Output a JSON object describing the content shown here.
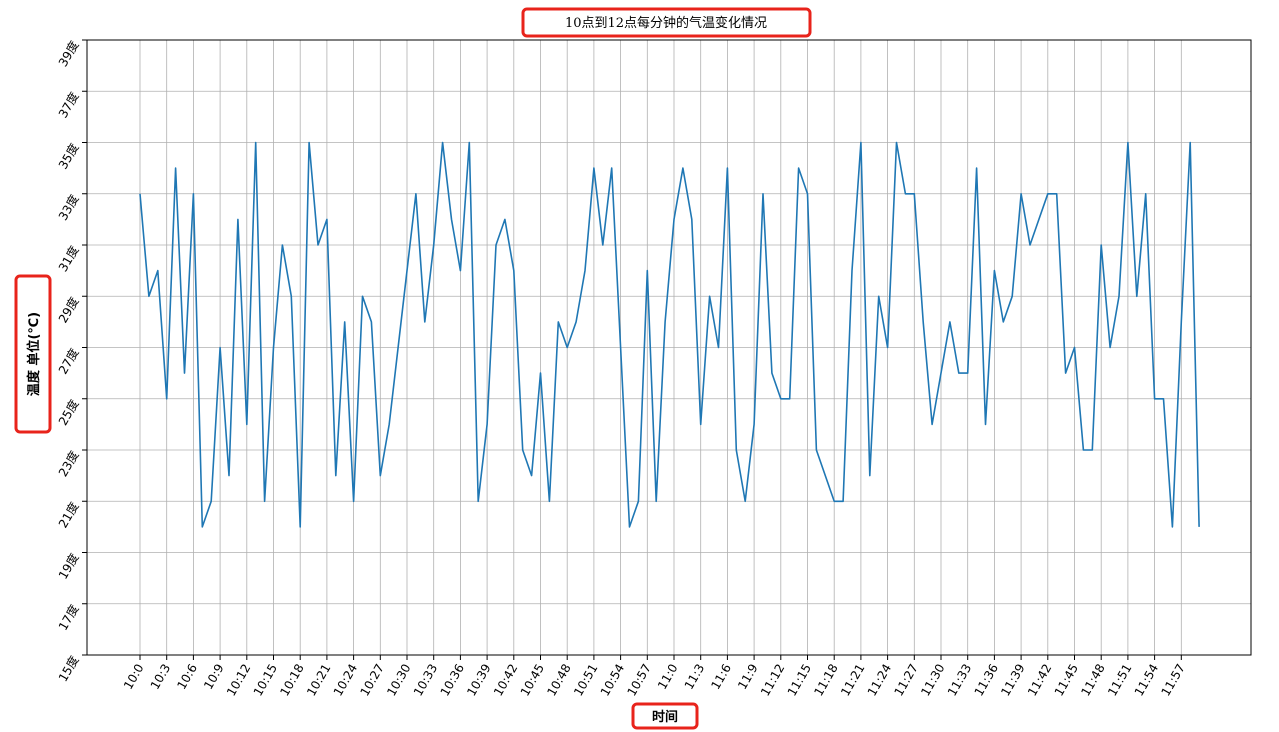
{
  "chart_data": {
    "type": "line",
    "title": "10点到12点每分钟的气温变化情况",
    "xlabel": "时间",
    "ylabel": "温度 单位(℃)",
    "x": [
      "10:0",
      "10:1",
      "10:2",
      "10:3",
      "10:4",
      "10:5",
      "10:6",
      "10:7",
      "10:8",
      "10:9",
      "10:10",
      "10:11",
      "10:12",
      "10:13",
      "10:14",
      "10:15",
      "10:16",
      "10:17",
      "10:18",
      "10:19",
      "10:20",
      "10:21",
      "10:22",
      "10:23",
      "10:24",
      "10:25",
      "10:26",
      "10:27",
      "10:28",
      "10:29",
      "10:30",
      "10:31",
      "10:32",
      "10:33",
      "10:34",
      "10:35",
      "10:36",
      "10:37",
      "10:38",
      "10:39",
      "10:40",
      "10:41",
      "10:42",
      "10:43",
      "10:44",
      "10:45",
      "10:46",
      "10:47",
      "10:48",
      "10:49",
      "10:50",
      "10:51",
      "10:52",
      "10:53",
      "10:54",
      "10:55",
      "10:56",
      "10:57",
      "10:58",
      "10:59",
      "11:0",
      "11:1",
      "11:2",
      "11:3",
      "11:4",
      "11:5",
      "11:6",
      "11:7",
      "11:8",
      "11:9",
      "11:10",
      "11:11",
      "11:12",
      "11:13",
      "11:14",
      "11:15",
      "11:16",
      "11:17",
      "11:18",
      "11:19",
      "11:20",
      "11:21",
      "11:22",
      "11:23",
      "11:24",
      "11:25",
      "11:26",
      "11:27",
      "11:28",
      "11:29",
      "11:30",
      "11:31",
      "11:32",
      "11:33",
      "11:34",
      "11:35",
      "11:36",
      "11:37",
      "11:38",
      "11:39",
      "11:40",
      "11:41",
      "11:42",
      "11:43",
      "11:44",
      "11:45",
      "11:46",
      "11:47",
      "11:48",
      "11:49",
      "11:50",
      "11:51",
      "11:52",
      "11:53",
      "11:54",
      "11:55",
      "11:56",
      "11:57",
      "11:58",
      "11:59"
    ],
    "xticks": [
      "10:0",
      "10:3",
      "10:6",
      "10:9",
      "10:12",
      "10:15",
      "10:18",
      "10:21",
      "10:24",
      "10:27",
      "10:30",
      "10:33",
      "10:36",
      "10:39",
      "10:42",
      "10:45",
      "10:48",
      "10:51",
      "10:54",
      "10:57",
      "11:0",
      "11:3",
      "11:6",
      "11:9",
      "11:12",
      "11:15",
      "11:18",
      "11:21",
      "11:24",
      "11:27",
      "11:30",
      "11:33",
      "11:36",
      "11:39",
      "11:42",
      "11:45",
      "11:48",
      "11:51",
      "11:54",
      "11:57"
    ],
    "yticks": [
      15,
      17,
      19,
      21,
      23,
      25,
      27,
      29,
      31,
      33,
      35,
      37,
      39
    ],
    "ytick_suffix": "度",
    "ylim": [
      15,
      39
    ],
    "grid": true,
    "series": [
      {
        "color": "#1f77b4",
        "values": [
          33,
          29,
          30,
          25,
          34,
          26,
          33,
          20,
          21,
          27,
          22,
          32,
          24,
          35,
          21,
          27,
          31,
          29,
          20,
          35,
          31,
          32,
          22,
          28,
          21,
          29,
          28,
          22,
          24,
          27,
          30,
          33,
          28,
          31,
          35,
          32,
          30,
          35,
          21,
          24,
          31,
          32,
          30,
          23,
          22,
          26,
          21,
          28,
          27,
          28,
          30,
          34,
          31,
          34,
          27,
          20,
          21,
          30,
          21,
          28,
          32,
          34,
          32,
          24,
          29,
          27,
          34,
          23,
          21,
          24,
          33,
          26,
          25,
          25,
          34,
          33,
          23,
          22,
          21,
          21,
          30,
          35,
          22,
          29,
          27,
          35,
          33,
          33,
          28,
          24,
          26,
          28,
          26,
          26,
          34,
          24,
          30,
          28,
          29,
          33,
          31,
          32,
          33,
          33,
          26,
          27,
          23,
          23,
          31,
          27,
          29,
          35,
          29,
          33,
          25,
          25,
          20,
          28,
          35,
          20
        ]
      }
    ]
  }
}
